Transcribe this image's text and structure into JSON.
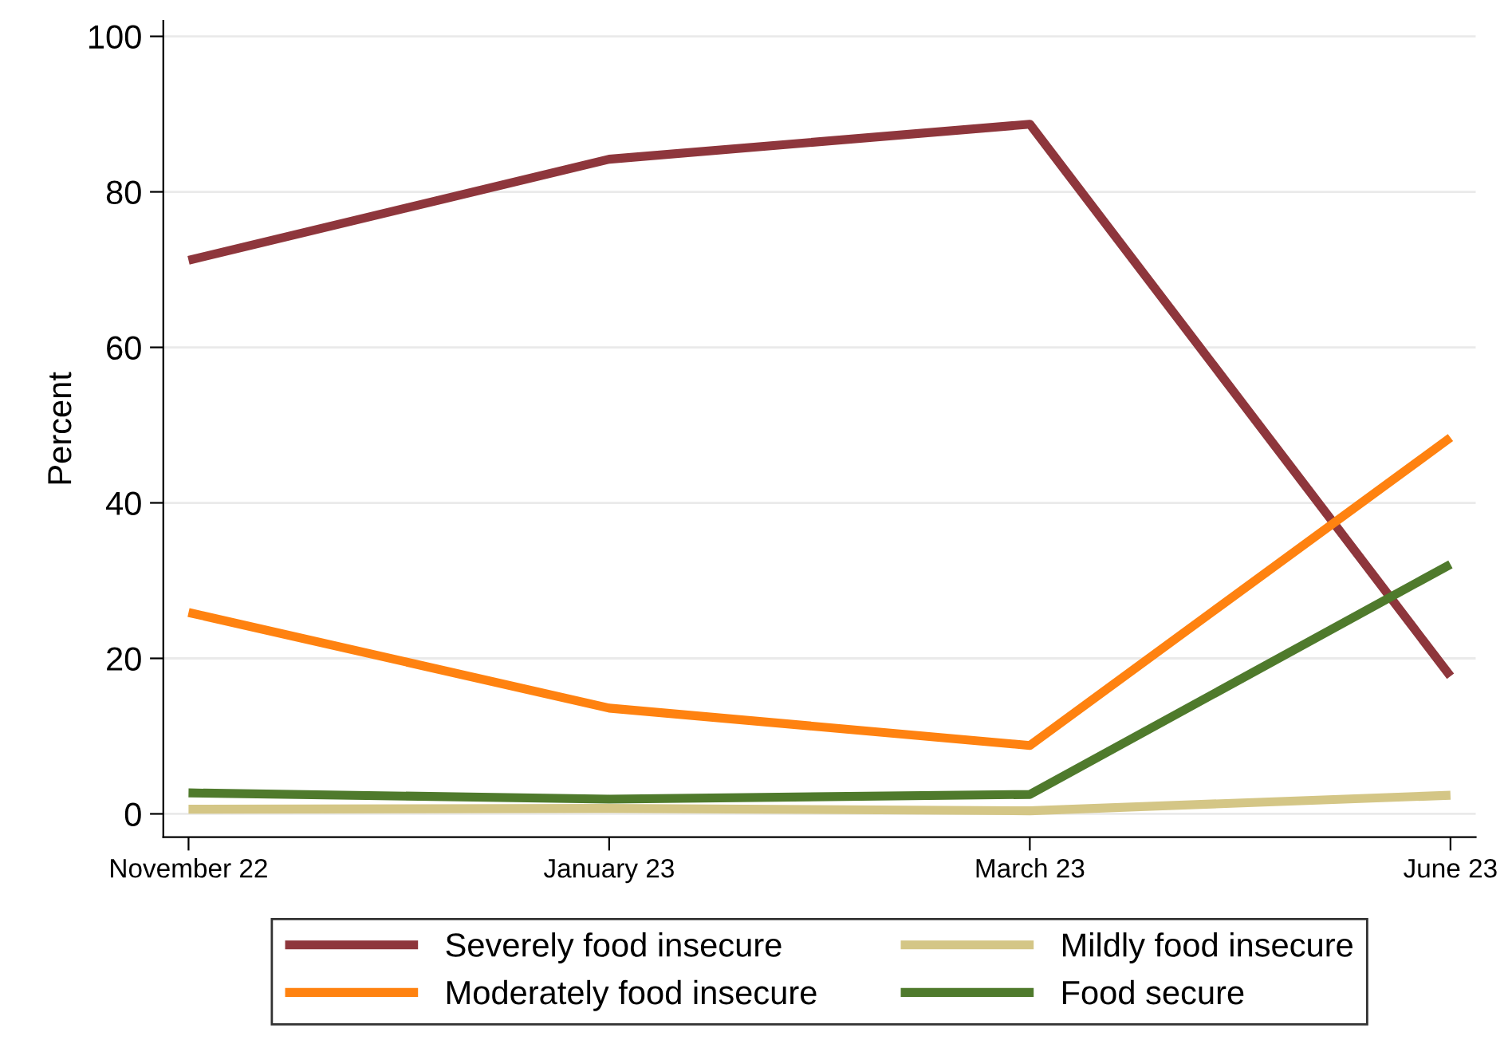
{
  "chart_data": {
    "type": "line",
    "ylabel": "Percent",
    "categories": [
      "November 22",
      "January 23",
      "March 23",
      "June 23"
    ],
    "series": [
      {
        "name": "Severely food insecure",
        "color": "#8e363c",
        "values": [
          71.2,
          84.2,
          88.7,
          17.7
        ]
      },
      {
        "name": "Moderately food insecure",
        "color": "#ff8210",
        "values": [
          25.9,
          13.6,
          8.8,
          48.4
        ]
      },
      {
        "name": "Mildly food insecure",
        "color": "#d4c686",
        "values": [
          0.6,
          0.7,
          0.4,
          2.4
        ]
      },
      {
        "name": "Food secure",
        "color": "#4f7a2c",
        "values": [
          2.7,
          1.9,
          2.5,
          32.1
        ]
      }
    ],
    "ylim": [
      -3,
      102
    ],
    "yticks": [
      0,
      20,
      40,
      60,
      80,
      100
    ],
    "grid": "y",
    "legend": "bottom",
    "marker": "none",
    "line_style": "solid"
  }
}
